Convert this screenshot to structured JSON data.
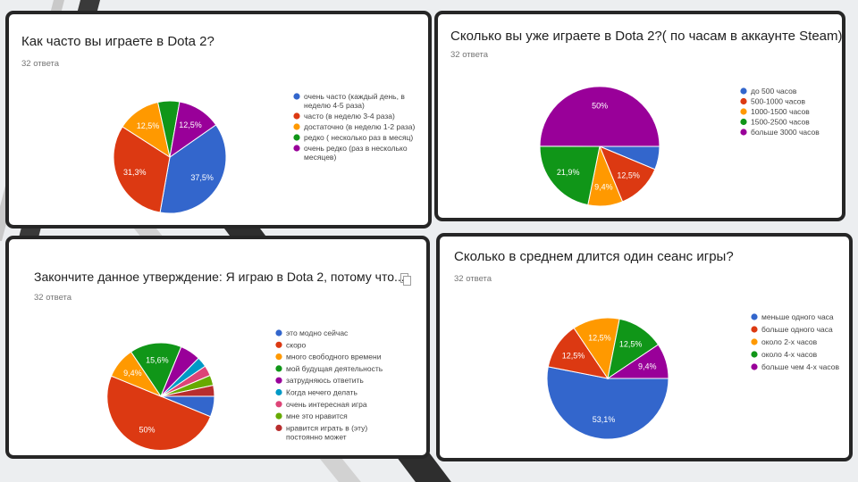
{
  "chart_data": [
    {
      "type": "pie",
      "title": "Как часто вы играете в Dota 2?",
      "subtitle": "32 ответа",
      "legend_position": "right",
      "series": [
        {
          "name": "очень часто (каждый день, в неделю 4-5 раза)",
          "value": 37.5,
          "label": "37,5%",
          "color": "#3366cc"
        },
        {
          "name": "часто (в неделю 3-4 раза)",
          "value": 31.3,
          "label": "31,3%",
          "color": "#dc3912"
        },
        {
          "name": "достаточно (в неделю 1-2 раза)",
          "value": 12.5,
          "label": "12,5%",
          "color": "#ff9900"
        },
        {
          "name": "редко ( несколько раз в месяц)",
          "value": 6.2,
          "label": "",
          "color": "#109618"
        },
        {
          "name": "очень редко (раз в несколько месяцев)",
          "value": 12.5,
          "label": "12,5%",
          "color": "#990099"
        }
      ]
    },
    {
      "type": "pie",
      "title": "Сколько вы уже играете в Dota 2?( по часам в аккаунте Steam)",
      "subtitle": "32 ответа",
      "legend_position": "right",
      "series": [
        {
          "name": "до 500 часов",
          "value": 6.3,
          "label": "",
          "color": "#3366cc"
        },
        {
          "name": "500-1000 часов",
          "value": 12.5,
          "label": "12,5%",
          "color": "#dc3912"
        },
        {
          "name": "1000-1500 часов",
          "value": 9.4,
          "label": "9,4%",
          "color": "#ff9900"
        },
        {
          "name": "1500-2500 часов",
          "value": 21.9,
          "label": "21,9%",
          "color": "#109618"
        },
        {
          "name": "больше 3000 часов",
          "value": 50,
          "label": "50%",
          "color": "#990099"
        }
      ]
    },
    {
      "type": "pie",
      "title": "Закончите данное утверждение: Я играю в Dota 2, потому что...",
      "subtitle": "32 ответа",
      "legend_position": "right",
      "series": [
        {
          "name": "это модно сейчас",
          "value": 6.2,
          "label": "",
          "color": "#3366cc"
        },
        {
          "name": "скоро",
          "value": 50,
          "label": "50%",
          "color": "#dc3912"
        },
        {
          "name": "много свободного времени",
          "value": 9.4,
          "label": "9,4%",
          "color": "#ff9900"
        },
        {
          "name": "мой будущая деятельность",
          "value": 15.6,
          "label": "15,6%",
          "color": "#109618"
        },
        {
          "name": "затрудняюсь ответить",
          "value": 6.2,
          "label": "",
          "color": "#990099"
        },
        {
          "name": "Когда нечего делать",
          "value": 3.1,
          "label": "",
          "color": "#0099c6"
        },
        {
          "name": "очень интересная игра",
          "value": 3.1,
          "label": "",
          "color": "#dd4477"
        },
        {
          "name": "мне это нравится",
          "value": 3.1,
          "label": "",
          "color": "#66aa00"
        },
        {
          "name": "нравится играть в (эту) постоянно может",
          "value": 3.3,
          "label": "",
          "color": "#b82e2e"
        }
      ]
    },
    {
      "type": "pie",
      "title": "Сколько в среднем длится один сеанс игры?",
      "subtitle": "32 ответа",
      "legend_position": "right",
      "series": [
        {
          "name": "меньше одного часа",
          "value": 53.1,
          "label": "53,1%",
          "color": "#3366cc"
        },
        {
          "name": "больше одного часа",
          "value": 12.5,
          "label": "12,5%",
          "color": "#dc3912"
        },
        {
          "name": "около 2-х часов",
          "value": 12.5,
          "label": "12,5%",
          "color": "#ff9900"
        },
        {
          "name": "около 4-х часов",
          "value": 12.5,
          "label": "12,5%",
          "color": "#109618"
        },
        {
          "name": "больше чем 4-х часов",
          "value": 9.4,
          "label": "9,4%",
          "color": "#990099"
        }
      ]
    }
  ],
  "icons": {
    "copy": "copy-icon"
  }
}
